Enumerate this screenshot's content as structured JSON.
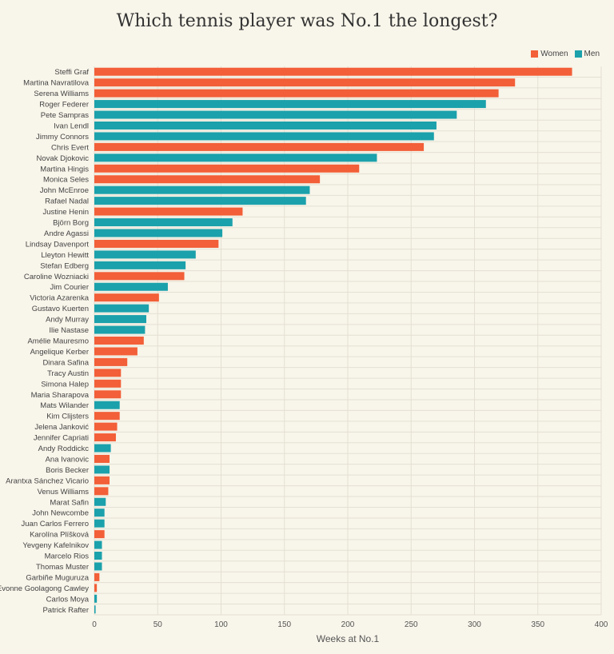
{
  "chart_data": {
    "type": "bar",
    "orientation": "horizontal",
    "title": "Which tennis player was No.1 the longest?",
    "xlabel": "Weeks at No.1",
    "ylabel": "",
    "xlim": [
      0,
      400
    ],
    "xticks": [
      0,
      50,
      100,
      150,
      200,
      250,
      300,
      350,
      400
    ],
    "grid": true,
    "legend_position": "top-right",
    "colors": {
      "Women": "#f25f38",
      "Men": "#1ba1ab"
    },
    "legend": [
      "Women",
      "Men"
    ],
    "rows": [
      {
        "name": "Steffi Graf",
        "group": "Women",
        "value": 377
      },
      {
        "name": "Martina Navratilova",
        "group": "Women",
        "value": 332
      },
      {
        "name": "Serena Williams",
        "group": "Women",
        "value": 319
      },
      {
        "name": "Roger Federer",
        "group": "Men",
        "value": 309
      },
      {
        "name": "Pete Sampras",
        "group": "Men",
        "value": 286
      },
      {
        "name": "Ivan Lendl",
        "group": "Men",
        "value": 270
      },
      {
        "name": "Jimmy Connors",
        "group": "Men",
        "value": 268
      },
      {
        "name": "Chris Evert",
        "group": "Women",
        "value": 260
      },
      {
        "name": "Novak Djokovic",
        "group": "Men",
        "value": 223
      },
      {
        "name": "Martina Hingis",
        "group": "Women",
        "value": 209
      },
      {
        "name": "Monica Seles",
        "group": "Women",
        "value": 178
      },
      {
        "name": "John McEnroe",
        "group": "Men",
        "value": 170
      },
      {
        "name": "Rafael Nadal",
        "group": "Men",
        "value": 167
      },
      {
        "name": "Justine Henin",
        "group": "Women",
        "value": 117
      },
      {
        "name": "Björn Borg",
        "group": "Men",
        "value": 109
      },
      {
        "name": "Andre Agassi",
        "group": "Men",
        "value": 101
      },
      {
        "name": "Lindsay Davenport",
        "group": "Women",
        "value": 98
      },
      {
        "name": "Lleyton Hewitt",
        "group": "Men",
        "value": 80
      },
      {
        "name": "Stefan Edberg",
        "group": "Men",
        "value": 72
      },
      {
        "name": "Caroline Wozniacki",
        "group": "Women",
        "value": 71
      },
      {
        "name": "Jim Courier",
        "group": "Men",
        "value": 58
      },
      {
        "name": "Victoria Azarenka",
        "group": "Women",
        "value": 51
      },
      {
        "name": "Gustavo Kuerten",
        "group": "Men",
        "value": 43
      },
      {
        "name": "Andy Murray",
        "group": "Men",
        "value": 41
      },
      {
        "name": "Ilie Nastase",
        "group": "Men",
        "value": 40
      },
      {
        "name": "Amélie Mauresmo",
        "group": "Women",
        "value": 39
      },
      {
        "name": "Angelique Kerber",
        "group": "Women",
        "value": 34
      },
      {
        "name": "Dinara Safina",
        "group": "Women",
        "value": 26
      },
      {
        "name": "Tracy Austin",
        "group": "Women",
        "value": 21
      },
      {
        "name": "Simona Halep",
        "group": "Women",
        "value": 21
      },
      {
        "name": "Maria Sharapova",
        "group": "Women",
        "value": 21
      },
      {
        "name": "Mats Wilander",
        "group": "Men",
        "value": 20
      },
      {
        "name": "Kim Clijsters",
        "group": "Women",
        "value": 20
      },
      {
        "name": "Jelena Janković",
        "group": "Women",
        "value": 18
      },
      {
        "name": "Jennifer Capriati",
        "group": "Women",
        "value": 17
      },
      {
        "name": "Andy Roddickc",
        "group": "Men",
        "value": 13
      },
      {
        "name": "Ana Ivanovic",
        "group": "Women",
        "value": 12
      },
      {
        "name": "Boris Becker",
        "group": "Men",
        "value": 12
      },
      {
        "name": "Arantxa Sánchez Vicario",
        "group": "Women",
        "value": 12
      },
      {
        "name": "Venus Williams",
        "group": "Women",
        "value": 11
      },
      {
        "name": "Marat Safin",
        "group": "Men",
        "value": 9
      },
      {
        "name": "John Newcombe",
        "group": "Men",
        "value": 8
      },
      {
        "name": "Juan Carlos Ferrero",
        "group": "Men",
        "value": 8
      },
      {
        "name": "Karolína Plíšková",
        "group": "Women",
        "value": 8
      },
      {
        "name": "Yevgeny Kafelnikov",
        "group": "Men",
        "value": 6
      },
      {
        "name": "Marcelo Rios",
        "group": "Men",
        "value": 6
      },
      {
        "name": "Thomas Muster",
        "group": "Men",
        "value": 6
      },
      {
        "name": "Garbiñe Muguruza",
        "group": "Women",
        "value": 4
      },
      {
        "name": "Evonne Goolagong Cawley",
        "group": "Women",
        "value": 2
      },
      {
        "name": "Carlos Moya",
        "group": "Men",
        "value": 2
      },
      {
        "name": "Patrick Rafter",
        "group": "Men",
        "value": 1
      }
    ]
  }
}
